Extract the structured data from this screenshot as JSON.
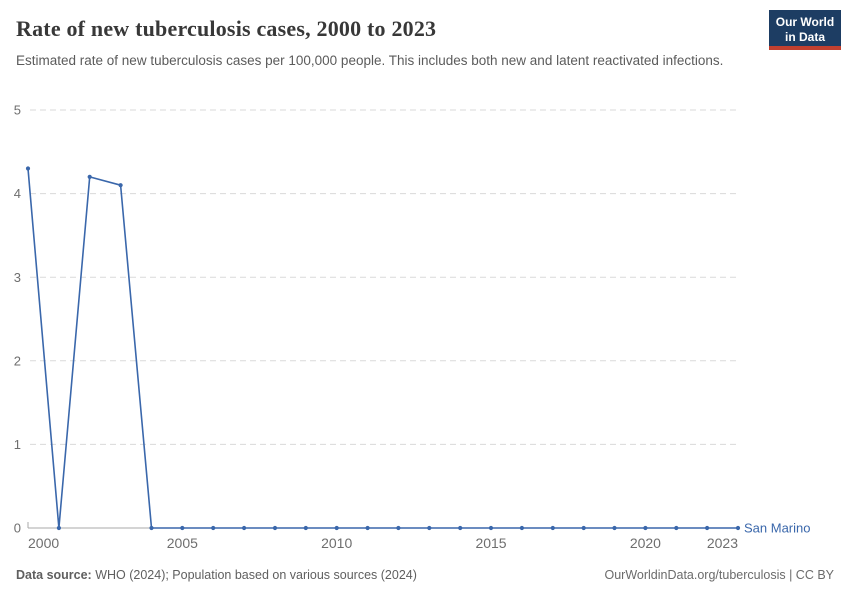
{
  "header": {
    "title": "Rate of new tuberculosis cases, 2000 to 2023",
    "subtitle": "Estimated rate of new tuberculosis cases per 100,000 people. This includes both new and latent reactivated infections.",
    "logo": {
      "line1": "Our World",
      "line2": "in Data"
    }
  },
  "footer": {
    "source_label": "Data source:",
    "source_text": " WHO (2024); Population based on various sources (2024)",
    "right_text": "OurWorldinData.org/tuberculosis | CC BY"
  },
  "colors": {
    "series_blue": "#3a67ab",
    "logo_navy": "#1d3d63",
    "logo_red": "#c2402f",
    "grid_gray": "#dadada",
    "axis_gray": "#a8a8a8",
    "tick_text_gray": "#6e6e6e"
  },
  "chart_data": {
    "type": "line",
    "title": "Rate of new tuberculosis cases, 2000 to 2023",
    "subtitle": "Estimated rate of new tuberculosis cases per 100,000 people. This includes both new and latent reactivated infections.",
    "xlabel": "",
    "ylabel": "",
    "x": [
      2000,
      2001,
      2002,
      2003,
      2004,
      2005,
      2006,
      2007,
      2008,
      2009,
      2010,
      2011,
      2012,
      2013,
      2014,
      2015,
      2016,
      2017,
      2018,
      2019,
      2020,
      2021,
      2022,
      2023
    ],
    "series": [
      {
        "name": "San Marino",
        "color": "#3a67ab",
        "values": [
          4.3,
          0,
          4.2,
          4.1,
          0,
          0,
          0,
          0,
          0,
          0,
          0,
          0,
          0,
          0,
          0,
          0,
          0,
          0,
          0,
          0,
          0,
          0,
          0,
          0
        ]
      }
    ],
    "xlim": [
      2000,
      2023
    ],
    "ylim": [
      0,
      5
    ],
    "yticks": [
      0,
      1,
      2,
      3,
      4,
      5
    ],
    "xticks": [
      2000,
      2005,
      2010,
      2015,
      2020,
      2023
    ],
    "grid": "horizontal-dashed",
    "legend_position": "end-of-line"
  }
}
